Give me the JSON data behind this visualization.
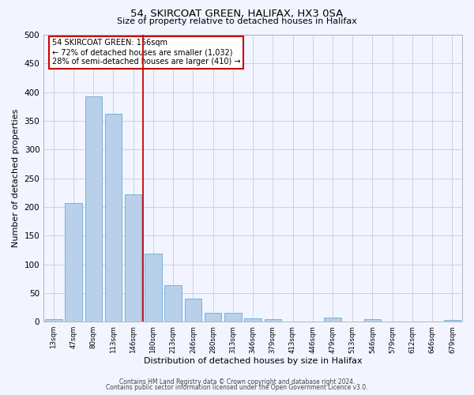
{
  "title": "54, SKIRCOAT GREEN, HALIFAX, HX3 0SA",
  "subtitle": "Size of property relative to detached houses in Halifax",
  "xlabel": "Distribution of detached houses by size in Halifax",
  "ylabel": "Number of detached properties",
  "categories": [
    "13sqm",
    "47sqm",
    "80sqm",
    "113sqm",
    "146sqm",
    "180sqm",
    "213sqm",
    "246sqm",
    "280sqm",
    "313sqm",
    "346sqm",
    "379sqm",
    "413sqm",
    "446sqm",
    "479sqm",
    "513sqm",
    "546sqm",
    "579sqm",
    "612sqm",
    "646sqm",
    "679sqm"
  ],
  "values": [
    5,
    207,
    393,
    362,
    222,
    118,
    64,
    40,
    16,
    16,
    6,
    5,
    0,
    0,
    7,
    0,
    5,
    0,
    0,
    0,
    3
  ],
  "bar_color": "#b8d0ea",
  "bar_edge_color": "#6aaad4",
  "vline_x": 4.5,
  "vline_color": "#cc0000",
  "annotation_title": "54 SKIRCOAT GREEN: 156sqm",
  "annotation_line1": "← 72% of detached houses are smaller (1,032)",
  "annotation_line2": "28% of semi-detached houses are larger (410) →",
  "annotation_box_color": "#cc0000",
  "ylim": [
    0,
    500
  ],
  "yticks": [
    0,
    50,
    100,
    150,
    200,
    250,
    300,
    350,
    400,
    450,
    500
  ],
  "bg_color": "#f2f5ff",
  "plot_bg_color": "#f2f5ff",
  "grid_color": "#c5cce0",
  "footer_line1": "Contains HM Land Registry data © Crown copyright and database right 2024.",
  "footer_line2": "Contains public sector information licensed under the Open Government Licence v3.0."
}
